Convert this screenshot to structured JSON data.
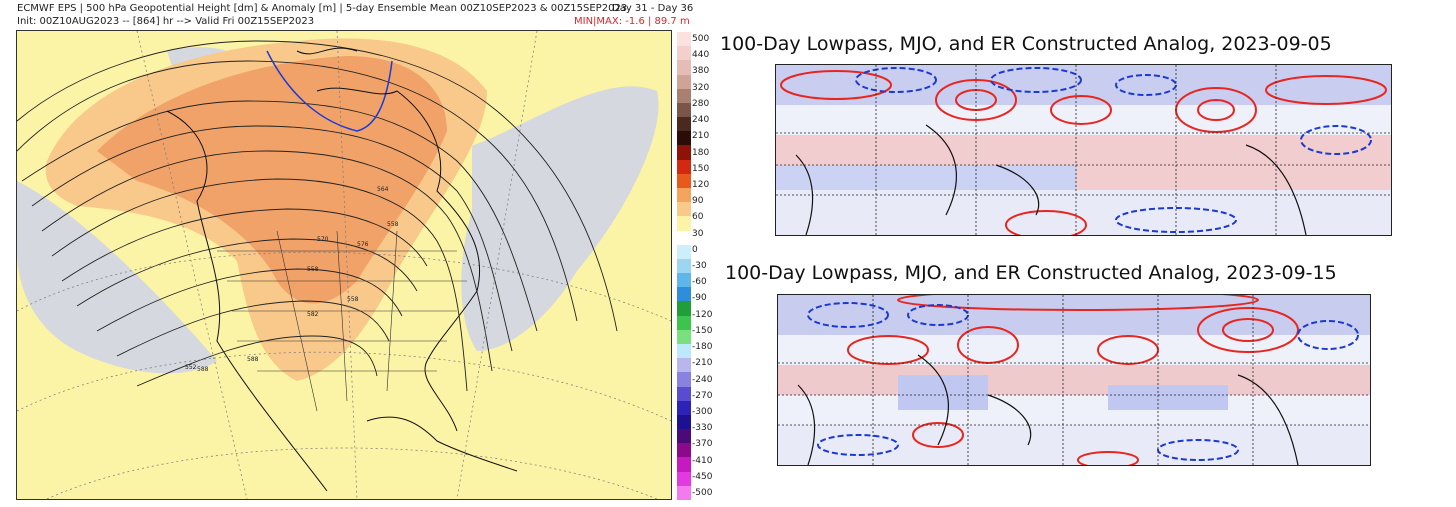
{
  "left_map": {
    "header_line1": "ECMWF EPS | 500 hPa Geopotential Height [dm] & Anomaly [m] | 5-day Ensemble Mean 00Z10SEP2023 & 00Z15SEP2023",
    "header_days": "Day 31 - Day 36",
    "header_line2": "Init: 00Z10AUG2023 -- [864] hr --> Valid Fri 00Z15SEP2023",
    "minmax": "MIN|MAX: -1.6 | 89.7 m",
    "contour_labels": [
      "552",
      "558",
      "558",
      "558",
      "564",
      "570",
      "576",
      "582",
      "588",
      "588"
    ],
    "colorbar_ticks": [
      "500",
      "440",
      "380",
      "320",
      "280",
      "240",
      "210",
      "180",
      "150",
      "120",
      "90",
      "60",
      "30",
      "0",
      "-30",
      "-60",
      "-90",
      "-120",
      "-150",
      "-180",
      "-210",
      "-240",
      "-270",
      "-300",
      "-330",
      "-370",
      "-410",
      "-450",
      "-500"
    ],
    "colorbar_colors": [
      "#fbe1df",
      "#f3d0cc",
      "#e6bdb6",
      "#cfa395",
      "#a98070",
      "#7a5548",
      "#4a2a20",
      "#2c0c08",
      "#8e1208",
      "#d22a10",
      "#e85a1c",
      "#f5a45e",
      "#f8c98a",
      "#fbf3a6",
      "#ffffff",
      "#cdeefb",
      "#9dd6f3",
      "#5fb6e8",
      "#2f8edc",
      "#1f9e3a",
      "#3cc44c",
      "#7ae07e",
      "#bde9ff",
      "#b9b6ee",
      "#8a82e0",
      "#5b4bd0",
      "#2d23b6",
      "#1d1092",
      "#4a0a78",
      "#8a0a8a",
      "#c41ac0",
      "#e23ae0",
      "#f47af0"
    ],
    "fill_ridge": "#f0a268",
    "fill_trough": "#d5d8de",
    "fill_base": "#fbf3a6"
  },
  "panels": [
    {
      "title": "100-Day Lowpass, MJO, and ER Constructed Analog, 2023-09-05"
    },
    {
      "title": "100-Day Lowpass, MJO, and ER Constructed Analog, 2023-09-15"
    }
  ]
}
